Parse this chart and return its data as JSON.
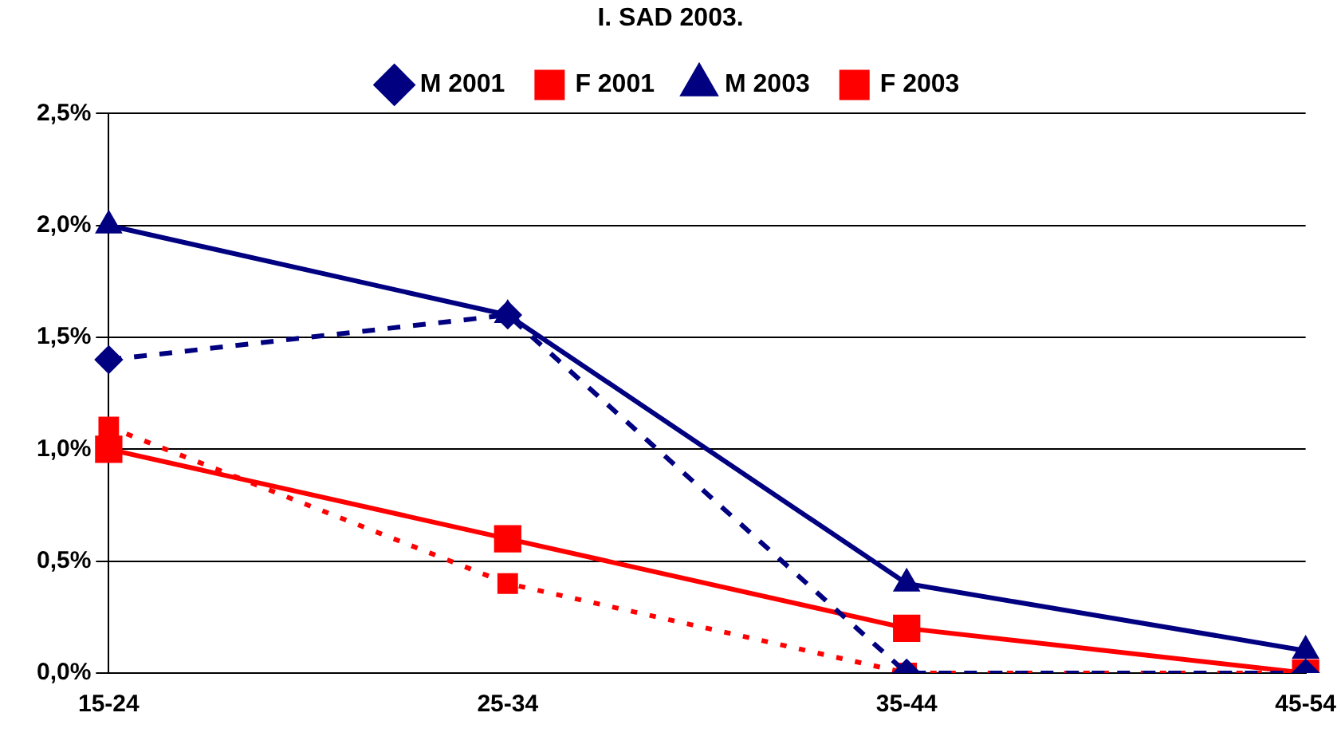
{
  "chart_data": {
    "type": "line",
    "title": "I. SAD 2003.",
    "categories": [
      "15-24",
      "25-34",
      "35-44",
      "45-54"
    ],
    "series": [
      {
        "name": "M 2001",
        "color": "#000080",
        "values": [
          1.4,
          1.6,
          0.0,
          0.0
        ],
        "marker": "diamond",
        "line_style": "dashed"
      },
      {
        "name": "F 2001",
        "color": "#ff0000",
        "values": [
          1.1,
          0.4,
          0.0,
          0.0
        ],
        "marker": "square",
        "line_style": "dotted"
      },
      {
        "name": "M 2003",
        "color": "#000080",
        "values": [
          2.0,
          1.6,
          0.4,
          0.1
        ],
        "marker": "triangle",
        "line_style": "solid"
      },
      {
        "name": "F 2003",
        "color": "#ff0000",
        "values": [
          1.0,
          0.6,
          0.2,
          0.0
        ],
        "marker": "square",
        "line_style": "solid"
      }
    ],
    "ylim": [
      0,
      2.5
    ],
    "yticks": [
      {
        "value": 0,
        "label": "0,0%"
      },
      {
        "value": 0.5,
        "label": "0,5%"
      },
      {
        "value": 1,
        "label": "1,0%"
      },
      {
        "value": 1.5,
        "label": "1,5%"
      },
      {
        "value": 2,
        "label": "2,0%"
      },
      {
        "value": 2.5,
        "label": "2,5%"
      }
    ],
    "grid": "y",
    "legend": "top"
  }
}
